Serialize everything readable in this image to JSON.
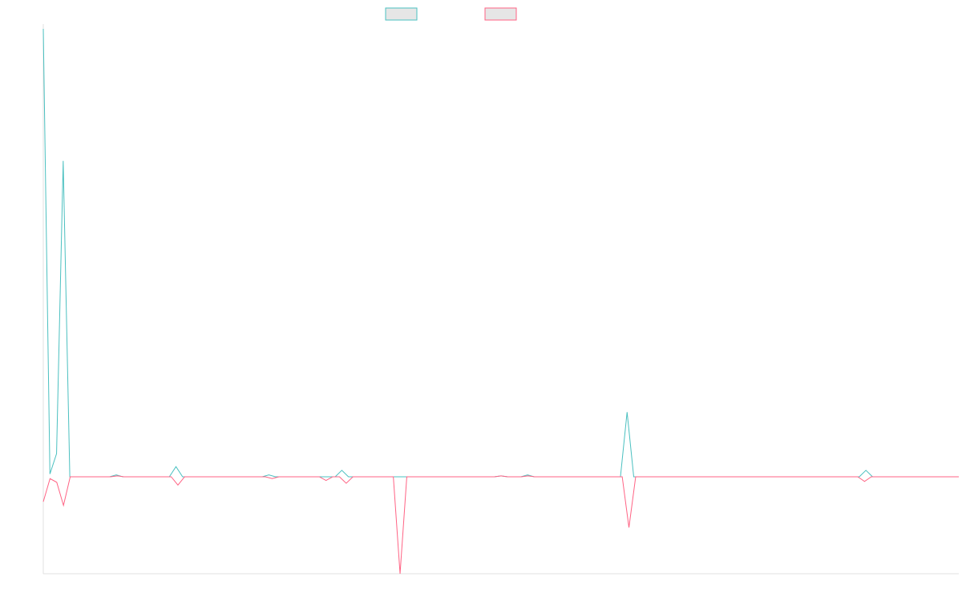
{
  "chart_data": {
    "type": "line",
    "title": "",
    "xlabel": "",
    "ylabel": "",
    "grid": false,
    "legend_position": "top-center",
    "ylim": [
      -1.05,
      4.85
    ],
    "series": [
      {
        "color": "#4bc0c0",
        "legend_fill": "#e6e6e6",
        "values": [
          4.85,
          0.03,
          0.25,
          3.42,
          0,
          0,
          0,
          0,
          0,
          0,
          0,
          0.02,
          0,
          0,
          0,
          0,
          0,
          0,
          0,
          0,
          0.11,
          0,
          0,
          0,
          0,
          0,
          0,
          0,
          0,
          0,
          0,
          0,
          0,
          0,
          0.02,
          0,
          0,
          0,
          0,
          0,
          0,
          0,
          0,
          0,
          0,
          0.07,
          0,
          0,
          0,
          0,
          0,
          0,
          0,
          0,
          0,
          0,
          0,
          0,
          0,
          0,
          0,
          0,
          0,
          0,
          0,
          0,
          0,
          0,
          0,
          0.01,
          0,
          0,
          0,
          0.02,
          0,
          0,
          0,
          0,
          0,
          0,
          0,
          0,
          0,
          0,
          0,
          0,
          0,
          0,
          0.7,
          0,
          0,
          0,
          0,
          0,
          0,
          0,
          0,
          0,
          0,
          0,
          0,
          0,
          0,
          0,
          0,
          0,
          0,
          0,
          0,
          0,
          0,
          0,
          0,
          0,
          0,
          0,
          0,
          0,
          0,
          0,
          0,
          0,
          0,
          0,
          0.07,
          0,
          0,
          0,
          0,
          0,
          0,
          0,
          0,
          0,
          0,
          0,
          0,
          0,
          0
        ]
      },
      {
        "color": "#ff6384",
        "legend_fill": "#e6e6e6",
        "values": [
          -0.27,
          -0.02,
          -0.06,
          -0.31,
          0,
          0,
          0,
          0,
          0,
          0,
          0,
          0.01,
          0,
          0,
          0,
          0,
          0,
          0,
          0,
          0,
          -0.09,
          0,
          0,
          0,
          0,
          0,
          0,
          0,
          0,
          0,
          0,
          0,
          0,
          0,
          -0.02,
          0,
          0,
          0,
          0,
          0,
          0,
          0,
          -0.04,
          0,
          0,
          -0.07,
          0,
          0,
          0,
          0,
          0,
          0,
          0,
          -1.05,
          0,
          0,
          0,
          0,
          0,
          0,
          0,
          0,
          0,
          0,
          0,
          0,
          0,
          0,
          0.01,
          0,
          0,
          0,
          0.01,
          0,
          0,
          0,
          0,
          0,
          0,
          0,
          0,
          0,
          0,
          0,
          0,
          0,
          0,
          -0.55,
          0,
          0,
          0,
          0,
          0,
          0,
          0,
          0,
          0,
          0,
          0,
          0,
          0,
          0,
          0,
          0,
          0,
          0,
          0,
          0,
          0,
          0,
          0,
          0,
          0,
          0,
          0,
          0,
          0,
          0,
          0,
          0,
          0,
          0,
          -0.05,
          0,
          0,
          0,
          0,
          0,
          0,
          0,
          0,
          0,
          0,
          0,
          0,
          0,
          0
        ]
      }
    ]
  }
}
